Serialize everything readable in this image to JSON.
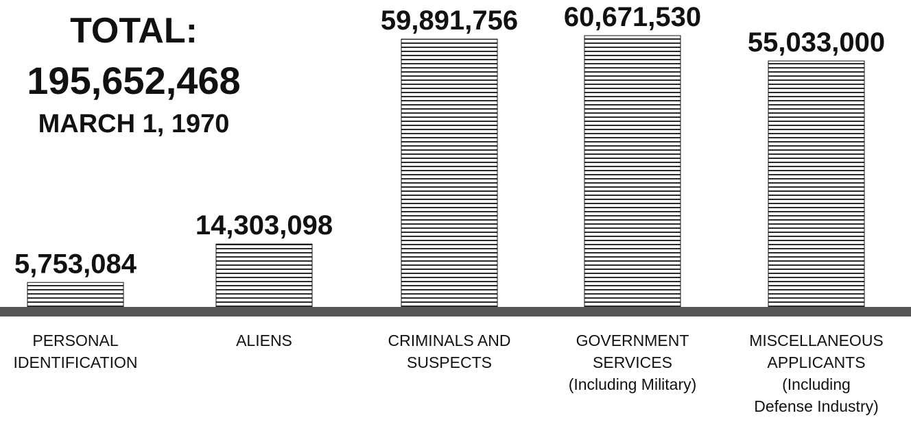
{
  "chart_data": {
    "type": "bar",
    "title": "TOTAL:",
    "total": "195,652,468",
    "date": "MARCH 1, 1970",
    "categories": [
      [
        "PERSONAL",
        "IDENTIFICATION"
      ],
      [
        "ALIENS"
      ],
      [
        "CRIMINALS AND",
        "SUSPECTS"
      ],
      [
        "GOVERNMENT",
        "SERVICES",
        "(Including Military)"
      ],
      [
        "MISCELLANEOUS",
        "APPLICANTS",
        "(Including",
        "Defense Industry)"
      ]
    ],
    "values": [
      5753084,
      14303098,
      59891756,
      60671530,
      55033000
    ],
    "value_labels": [
      "5,753,084",
      "14,303,098",
      "59,891,756",
      "60,671,530",
      "55,033,000"
    ],
    "color": "#111111"
  }
}
